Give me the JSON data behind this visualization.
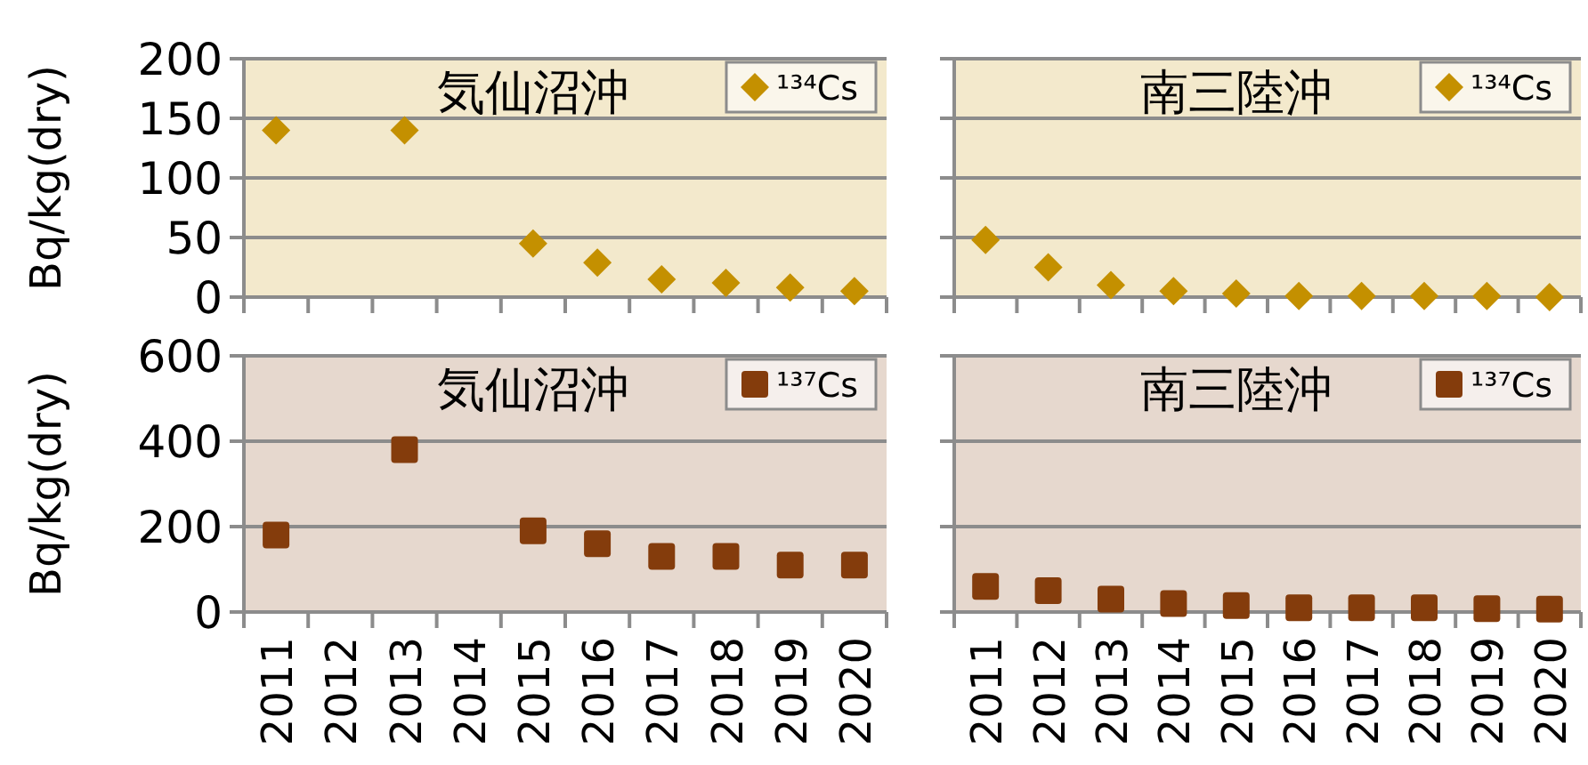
{
  "chart_data": [
    {
      "type": "scatter",
      "title": "気仙沼沖",
      "ylabel": "Bq/kg(dry)",
      "categories": [
        "2011",
        "2012",
        "2013",
        "2014",
        "2015",
        "2016",
        "2017",
        "2018",
        "2019",
        "2020"
      ],
      "series": [
        {
          "name": "¹³⁴Cs",
          "color": "#c49000",
          "values": [
            140,
            null,
            140,
            null,
            45,
            29,
            15,
            12,
            8,
            5
          ]
        }
      ],
      "ylim": [
        0,
        200
      ],
      "yticks": [
        0,
        50,
        100,
        150,
        200
      ],
      "grid": "y",
      "legend": "top right",
      "marker": "diamond",
      "tick_labels": "y"
    },
    {
      "type": "scatter",
      "title": "南三陸沖",
      "categories": [
        "2011",
        "2012",
        "2013",
        "2014",
        "2015",
        "2016",
        "2017",
        "2018",
        "2019",
        "2020"
      ],
      "series": [
        {
          "name": "¹³⁴Cs",
          "color": "#c49000",
          "values": [
            48,
            25,
            10,
            5,
            3,
            1,
            1,
            1,
            1,
            0
          ]
        }
      ],
      "ylim": [
        0,
        200
      ],
      "yticks": [
        0,
        50,
        100,
        150,
        200
      ],
      "grid": "y",
      "legend": "top right",
      "marker": "diamond",
      "tick_labels": false
    },
    {
      "type": "scatter",
      "title": "気仙沼沖",
      "ylabel": "Bq/kg(dry)",
      "categories": [
        "2011",
        "2012",
        "2013",
        "2014",
        "2015",
        "2016",
        "2017",
        "2018",
        "2019",
        "2020"
      ],
      "series": [
        {
          "name": "¹³⁷Cs",
          "color": "#843c0c",
          "values": [
            180,
            null,
            380,
            null,
            190,
            160,
            130,
            130,
            110,
            110
          ]
        }
      ],
      "ylim": [
        0,
        600
      ],
      "yticks": [
        0,
        200,
        400,
        600
      ],
      "grid": "y",
      "legend": "top right",
      "marker": "square"
    },
    {
      "type": "scatter",
      "title": "南三陸沖",
      "categories": [
        "2011",
        "2012",
        "2013",
        "2014",
        "2015",
        "2016",
        "2017",
        "2018",
        "2019",
        "2020"
      ],
      "series": [
        {
          "name": "¹³⁷Cs",
          "color": "#843c0c",
          "values": [
            60,
            50,
            30,
            20,
            15,
            10,
            10,
            10,
            8,
            7
          ]
        }
      ],
      "ylim": [
        0,
        600
      ],
      "yticks": [
        0,
        200,
        400,
        600
      ],
      "grid": "y",
      "legend": "top right",
      "marker": "square",
      "tick_labels": "x"
    }
  ]
}
